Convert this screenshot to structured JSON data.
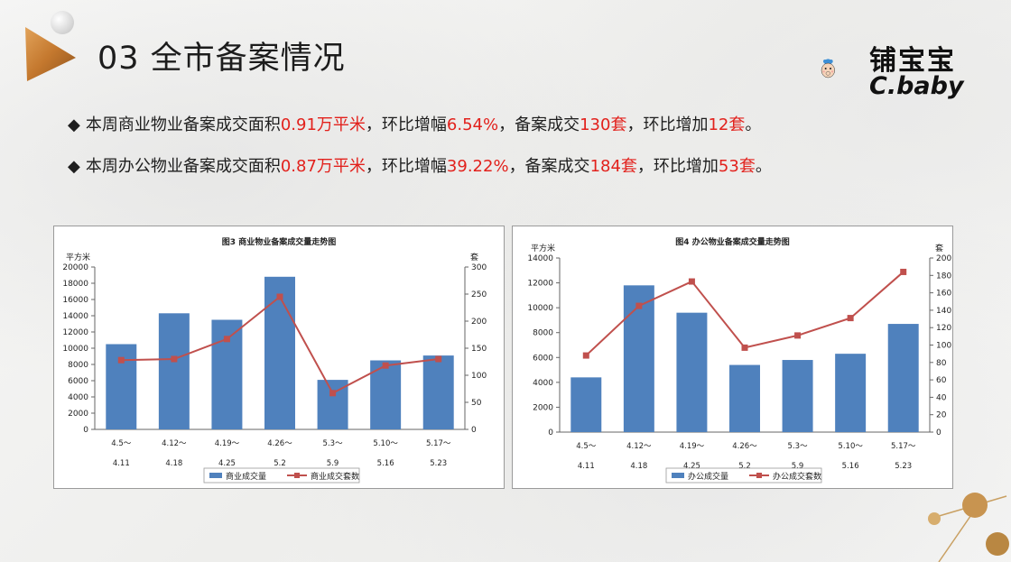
{
  "header": {
    "title": "03 全市备案情况"
  },
  "logo": {
    "text": "铺宝宝",
    "sub": "C.baby"
  },
  "bullets": [
    {
      "parts": [
        "本周商业物业备案成交面积",
        "0.91万平米",
        "，环比增幅",
        "6.54%",
        "，备案成交",
        "130套",
        "，环比增加",
        "12套",
        "。"
      ]
    },
    {
      "parts": [
        "本周办公物业备案成交面积",
        "0.87万平米",
        "，环比增幅",
        "39.22%",
        "，备案成交",
        "184套",
        "，环比增加",
        "53套",
        "。"
      ]
    }
  ],
  "chart_data": [
    {
      "type": "bar",
      "title": "图3   商业物业备案成交量走势图",
      "ylabel_left": "平方米",
      "ylabel_right": "套",
      "categories": [
        [
          "4.5～",
          "4.11"
        ],
        [
          "4.12～",
          "4.18"
        ],
        [
          "4.19～",
          "4.25"
        ],
        [
          "4.26～",
          "5.2"
        ],
        [
          "5.3～",
          "5.9"
        ],
        [
          "5.10～",
          "5.16"
        ],
        [
          "5.17～",
          "5.23"
        ]
      ],
      "series": [
        {
          "name": "商业成交量",
          "kind": "bar",
          "axis": "left",
          "values": [
            10500,
            14300,
            13500,
            18800,
            6100,
            8500,
            9100
          ]
        },
        {
          "name": "商业成交套数",
          "kind": "line",
          "axis": "right",
          "values": [
            128,
            130,
            167,
            245,
            67,
            118,
            130
          ]
        }
      ],
      "ylim_left": [
        0,
        20000
      ],
      "yticks_left": [
        0,
        2000,
        4000,
        6000,
        8000,
        10000,
        12000,
        14000,
        16000,
        18000,
        20000
      ],
      "ylim_right": [
        0,
        300
      ],
      "yticks_right": [
        0,
        50,
        100,
        150,
        200,
        250,
        300
      ],
      "legend": "bottom",
      "colors": {
        "bar": "#4f81bd",
        "line": "#c0504d"
      }
    },
    {
      "type": "bar",
      "title": "图4   办公物业备案成交量走势图",
      "ylabel_left": "平方米",
      "ylabel_right": "套",
      "categories": [
        [
          "4.5～",
          "4.11"
        ],
        [
          "4.12～",
          "4.18"
        ],
        [
          "4.19～",
          "4.25"
        ],
        [
          "4.26～",
          "5.2"
        ],
        [
          "5.3～",
          "5.9"
        ],
        [
          "5.10～",
          "5.16"
        ],
        [
          "5.17～",
          "5.23"
        ]
      ],
      "series": [
        {
          "name": "办公成交量",
          "kind": "bar",
          "axis": "left",
          "values": [
            4400,
            11800,
            9600,
            5400,
            5800,
            6300,
            8700
          ]
        },
        {
          "name": "办公成交套数",
          "kind": "line",
          "axis": "right",
          "values": [
            88,
            145,
            173,
            97,
            111,
            131,
            184
          ]
        }
      ],
      "ylim_left": [
        0,
        14000
      ],
      "yticks_left": [
        0,
        2000,
        4000,
        6000,
        8000,
        10000,
        12000,
        14000
      ],
      "ylim_right": [
        0,
        200
      ],
      "yticks_right": [
        0,
        20,
        40,
        60,
        80,
        100,
        120,
        140,
        160,
        180,
        200
      ],
      "legend": "bottom",
      "colors": {
        "bar": "#4f81bd",
        "line": "#c0504d"
      }
    }
  ]
}
